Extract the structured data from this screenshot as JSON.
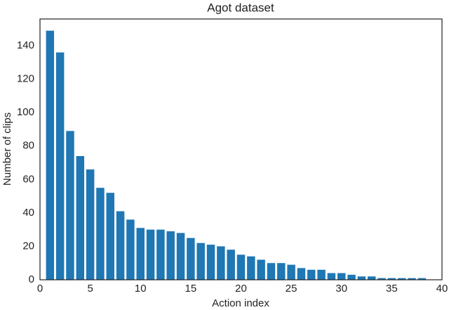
{
  "chart_data": {
    "type": "bar",
    "title": "Agot dataset",
    "x_label": "Action index",
    "y_label": "Number of clips",
    "x": [
      1,
      2,
      3,
      4,
      5,
      6,
      7,
      8,
      9,
      10,
      11,
      12,
      13,
      14,
      15,
      16,
      17,
      18,
      19,
      20,
      21,
      22,
      23,
      24,
      25,
      26,
      27,
      28,
      29,
      30,
      31,
      32,
      33,
      34,
      35,
      36,
      37,
      38
    ],
    "values": [
      149,
      136,
      89,
      74,
      66,
      55,
      52,
      41,
      36,
      31,
      30,
      30,
      29,
      28,
      25,
      22,
      21,
      20,
      18,
      15,
      14,
      12,
      10,
      10,
      9,
      7,
      6,
      6,
      4,
      4,
      3,
      2,
      2,
      1,
      1,
      1,
      1,
      1
    ],
    "color": "#1f77b4",
    "xlim": [
      0,
      40
    ],
    "xticks": [
      0,
      5,
      10,
      15,
      20,
      25,
      30,
      35,
      40
    ],
    "ylim": [
      0,
      156
    ],
    "yticks": [
      0,
      20,
      40,
      60,
      80,
      100,
      120,
      140
    ],
    "grid": false
  }
}
